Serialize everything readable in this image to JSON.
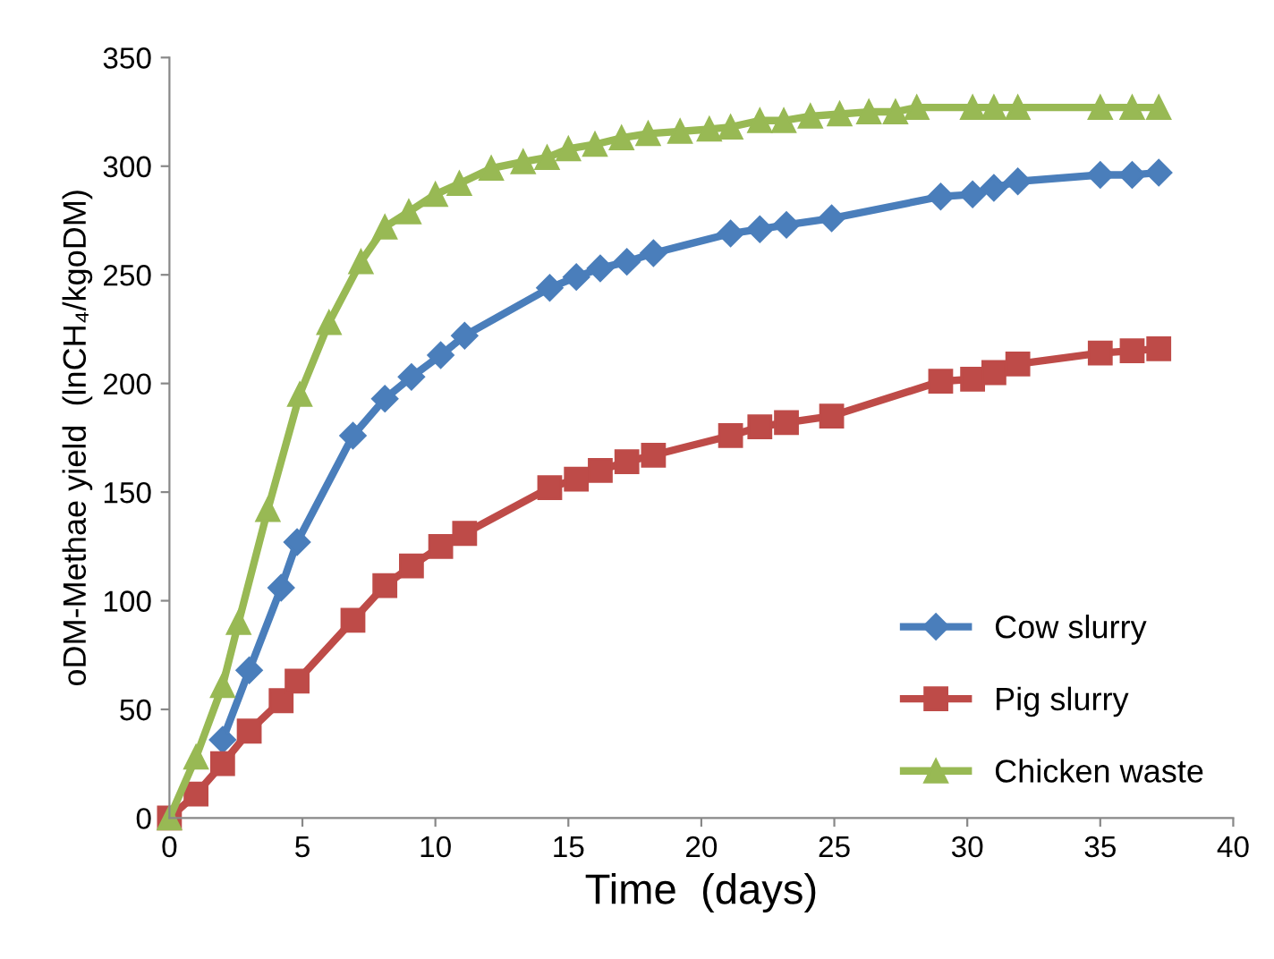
{
  "chart_data": {
    "type": "line",
    "xlabel": "Time  (days)",
    "ylabel": "oDM-Methae yield  (lnCH₄/kgoDM)",
    "xlim": [
      0,
      40
    ],
    "xticks": [
      0,
      5,
      10,
      15,
      20,
      25,
      30,
      35,
      40
    ],
    "ylim": [
      0,
      350
    ],
    "yticks": [
      0,
      50,
      100,
      150,
      200,
      250,
      300,
      350
    ],
    "grid": false,
    "legend": "bottom right",
    "line_style": "solid",
    "series": [
      {
        "name": "Cow slurry",
        "color": "#4a7ebb",
        "marker": "diamond",
        "x": [
          2.0,
          3.0,
          4.2,
          4.8,
          6.9,
          8.1,
          9.1,
          10.2,
          11.1,
          14.3,
          15.3,
          16.2,
          17.2,
          18.2,
          21.1,
          22.2,
          23.2,
          24.9,
          29.0,
          30.2,
          31.0,
          31.9,
          35.0,
          36.2,
          37.2
        ],
        "values": [
          36,
          68,
          106,
          127,
          176,
          193,
          203,
          213,
          222,
          244,
          249,
          253,
          256,
          260,
          269,
          271,
          273,
          276,
          286,
          287,
          290,
          293,
          296,
          296,
          297
        ]
      },
      {
        "name": "Pig slurry",
        "color": "#be4b48",
        "marker": "square",
        "x": [
          0,
          1.0,
          2.0,
          3.0,
          4.2,
          4.8,
          6.9,
          8.1,
          9.1,
          10.2,
          11.1,
          14.3,
          15.3,
          16.2,
          17.2,
          18.2,
          21.1,
          22.2,
          23.2,
          24.9,
          29.0,
          30.2,
          31.0,
          31.9,
          35.0,
          36.2,
          37.2
        ],
        "values": [
          0,
          11,
          25,
          40,
          54,
          63,
          91,
          107,
          116,
          125,
          131,
          152,
          156,
          160,
          164,
          167,
          176,
          180,
          182,
          185,
          201,
          202,
          205,
          209,
          214,
          215,
          216
        ]
      },
      {
        "name": "Chicken waste",
        "color": "#98b954",
        "marker": "triangle",
        "x": [
          0,
          1.0,
          2.0,
          2.6,
          3.7,
          4.9,
          6.0,
          7.2,
          8.1,
          9.0,
          10.0,
          10.9,
          12.1,
          13.3,
          14.2,
          15.0,
          16.0,
          17.0,
          18.0,
          19.2,
          20.3,
          21.1,
          22.2,
          23.1,
          24.1,
          25.2,
          26.3,
          27.3,
          28.1,
          30.2,
          31.0,
          31.9,
          35.0,
          36.2,
          37.2
        ],
        "values": [
          0,
          28,
          61,
          90,
          142,
          195,
          228,
          256,
          272,
          279,
          287,
          292,
          299,
          302,
          304,
          308,
          310,
          313,
          315,
          316,
          317,
          318,
          321,
          321,
          323,
          324,
          325,
          325,
          327,
          327,
          327,
          327,
          327,
          327,
          327
        ]
      }
    ]
  }
}
